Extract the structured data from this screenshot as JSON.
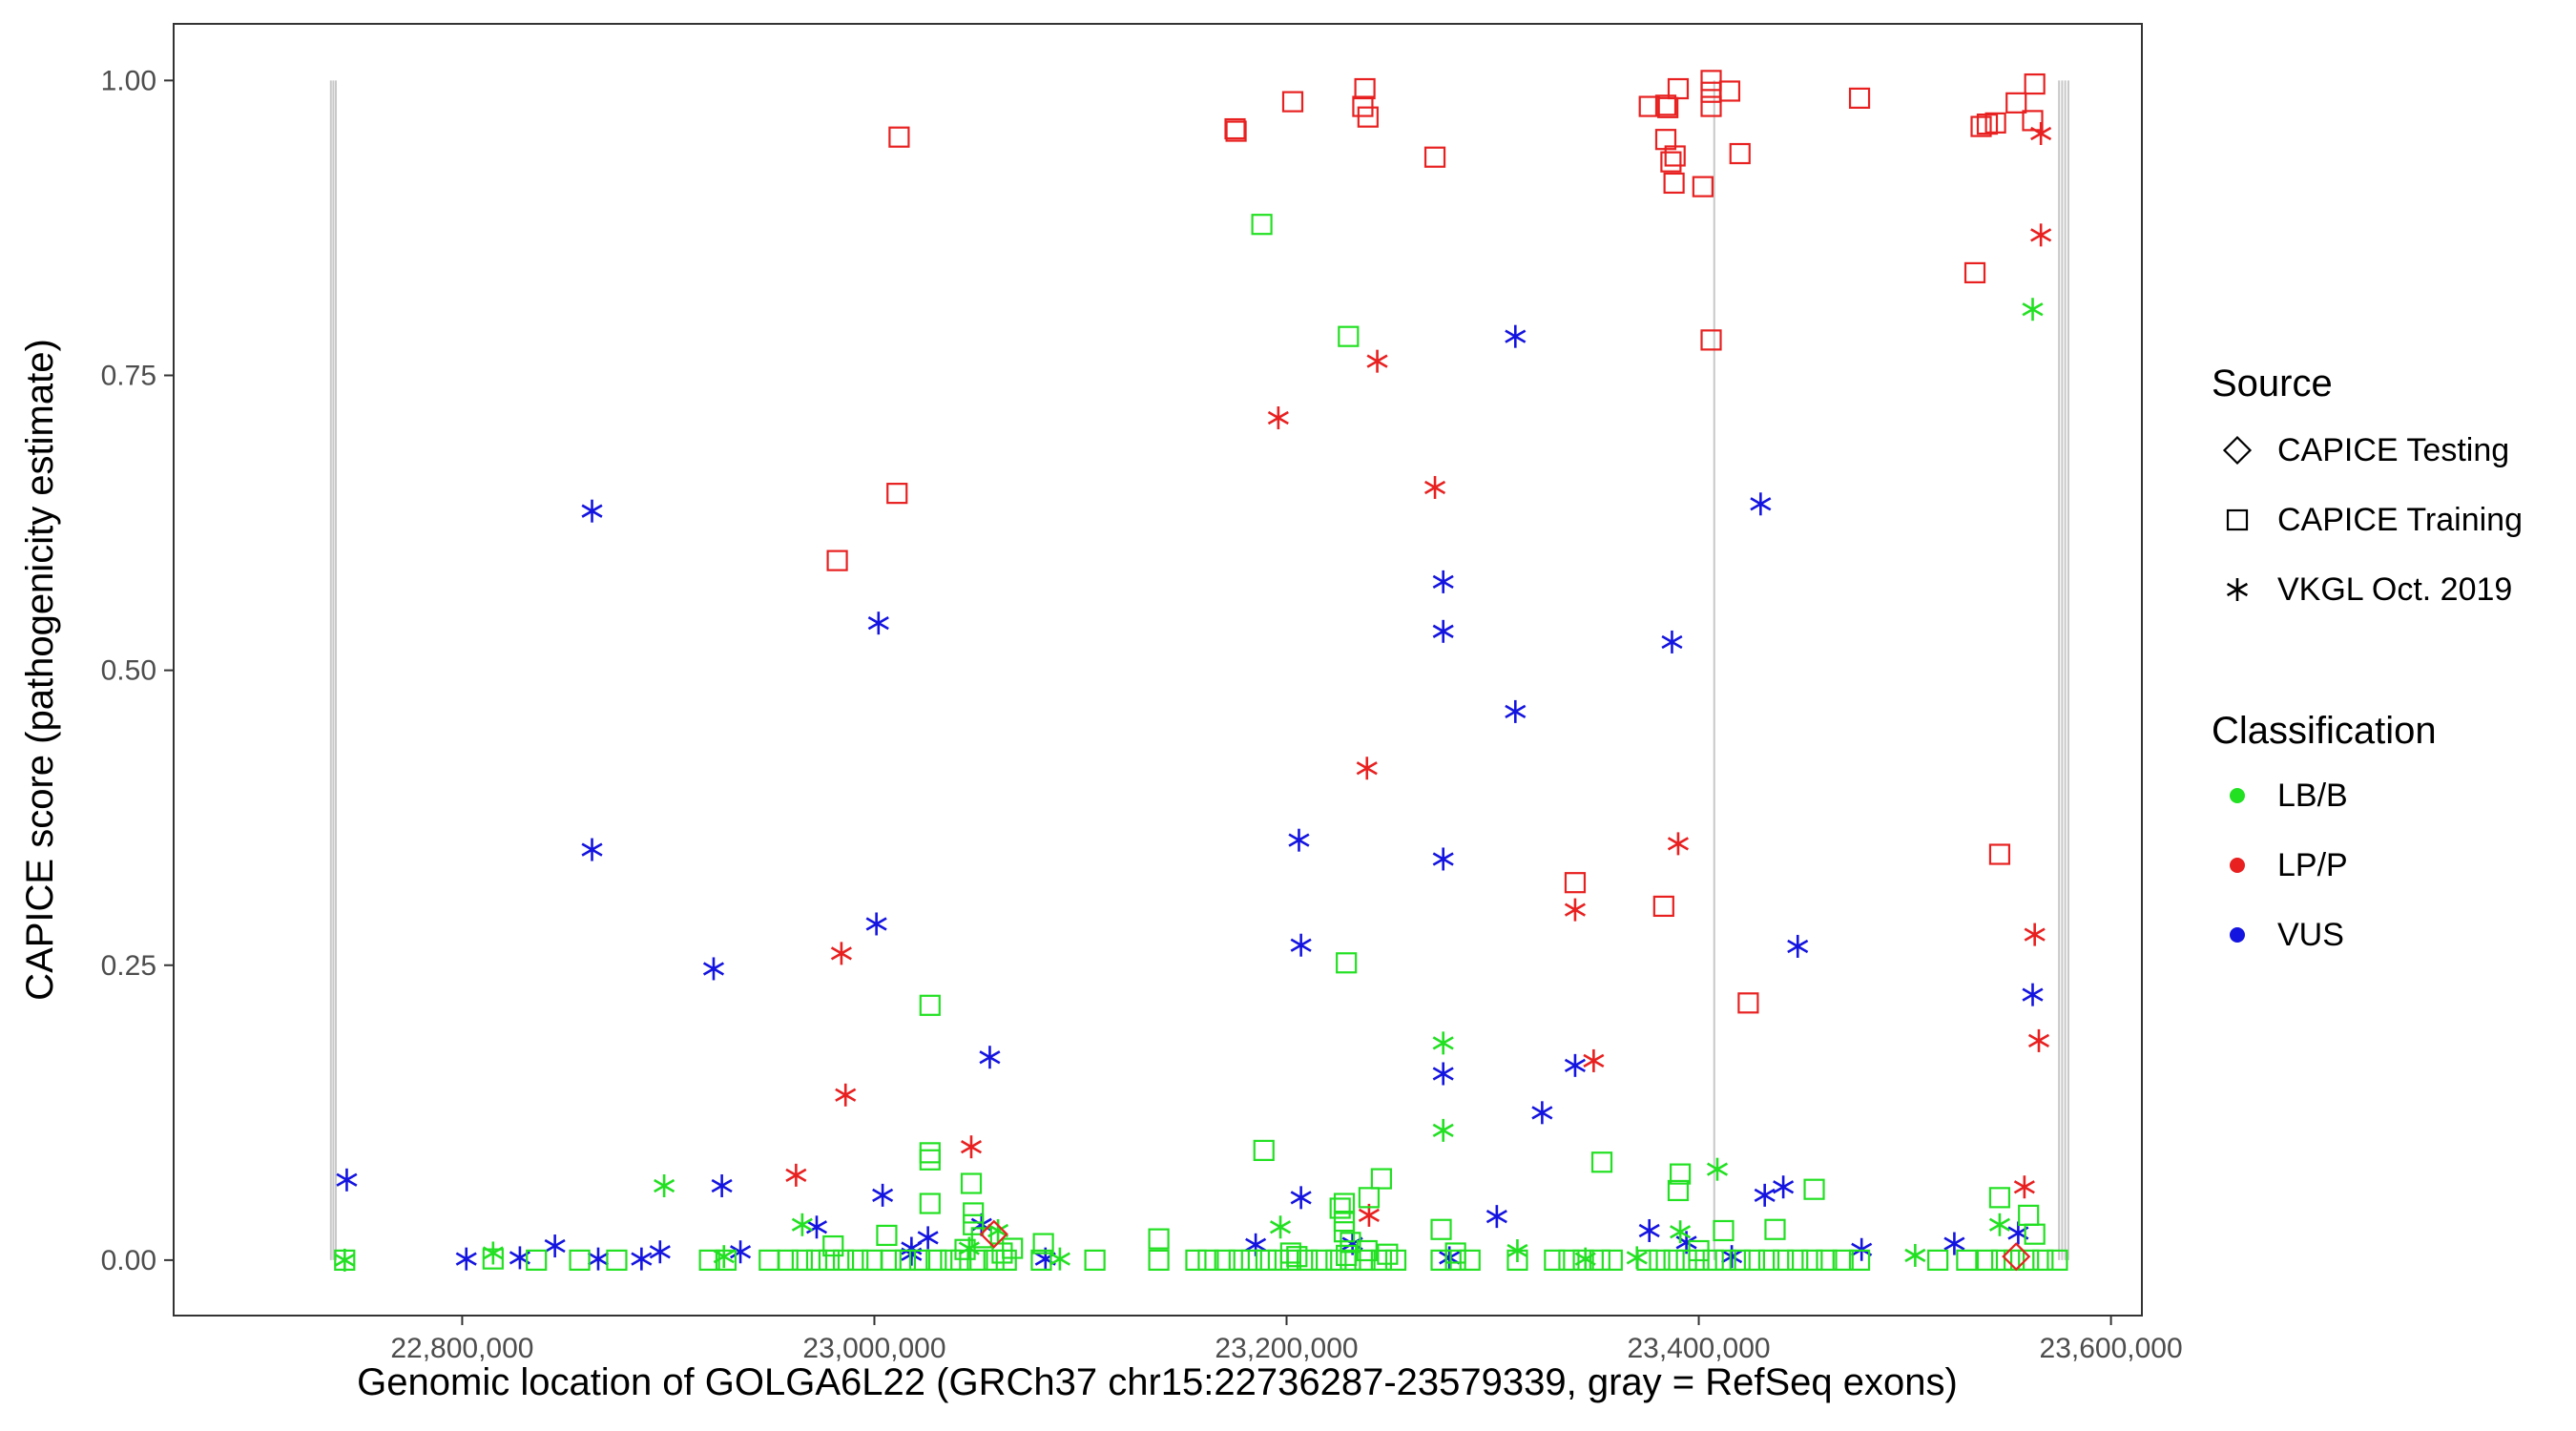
{
  "chart_data": {
    "type": "scatter",
    "xlabel": "Genomic location of GOLGA6L22 (GRCh37 chr15:22736287-23579339, gray = RefSeq exons)",
    "ylabel": "CAPICE score (pathogenicity estimate)",
    "xlim": [
      22660000,
      23615000
    ],
    "ylim": [
      -0.047,
      1.048
    ],
    "xticks": [
      22800000,
      23000000,
      23200000,
      23400000,
      23600000
    ],
    "xtick_labels": [
      "22,800,000",
      "23,000,000",
      "23,200,000",
      "23,400,000",
      "23,600,000"
    ],
    "yticks": [
      0,
      0.25,
      0.5,
      0.75,
      1
    ],
    "ytick_labels": [
      "0.00",
      "0.25",
      "0.50",
      "0.75",
      "1.00"
    ],
    "grid": false,
    "exon_positions": [
      22736287,
      22737500,
      22738700,
      23407500,
      23574800,
      23576300,
      23577800,
      23579339
    ],
    "colors": {
      "LB/B": "#22e022",
      "LP/P": "#e82020",
      "VUS": "#1414e0",
      "exon": "#c8c8c8"
    },
    "legend": {
      "placement": "right",
      "source_title": "Source",
      "source_items": [
        {
          "label": "CAPICE Testing",
          "shape": "diamond"
        },
        {
          "label": "CAPICE Training",
          "shape": "square"
        },
        {
          "label": "VKGL Oct. 2019",
          "shape": "asterisk"
        }
      ],
      "class_title": "Classification",
      "class_items": [
        {
          "label": "LB/B",
          "color": "#22e022"
        },
        {
          "label": "LP/P",
          "color": "#e82020"
        },
        {
          "label": "VUS",
          "color": "#1414e0"
        }
      ]
    },
    "series": [
      {
        "source": "CAPICE Training",
        "classification": "LP/P",
        "points": [
          [
            23012000,
            0.952
          ],
          [
            22982000,
            0.593
          ],
          [
            23011000,
            0.65
          ],
          [
            23175000,
            0.959
          ],
          [
            23175500,
            0.957
          ],
          [
            23203000,
            0.982
          ],
          [
            23238000,
            0.993
          ],
          [
            23237000,
            0.978
          ],
          [
            23239500,
            0.969
          ],
          [
            23272000,
            0.935
          ],
          [
            23376000,
            0.978
          ],
          [
            23384000,
            0.979
          ],
          [
            23385000,
            0.977
          ],
          [
            23390000,
            0.993
          ],
          [
            23384000,
            0.95
          ],
          [
            23388500,
            0.936
          ],
          [
            23386500,
            0.931
          ],
          [
            23388000,
            0.913
          ],
          [
            23406000,
            1.0
          ],
          [
            23406000,
            0.99
          ],
          [
            23406000,
            0.978
          ],
          [
            23415000,
            0.991
          ],
          [
            23420000,
            0.938
          ],
          [
            23402000,
            0.91
          ],
          [
            23406000,
            0.78
          ],
          [
            23383000,
            0.3
          ],
          [
            23340000,
            0.32
          ],
          [
            23424000,
            0.218
          ],
          [
            23478000,
            0.985
          ],
          [
            23540000,
            0.963
          ],
          [
            23537000,
            0.961
          ],
          [
            23544000,
            0.964
          ],
          [
            23554000,
            0.981
          ],
          [
            23563000,
            0.997
          ],
          [
            23562000,
            0.966
          ],
          [
            23534000,
            0.837
          ],
          [
            23546000,
            0.344
          ]
        ]
      },
      {
        "source": "VKGL Oct. 2019",
        "classification": "LP/P",
        "points": [
          [
            23196000,
            0.714
          ],
          [
            23244000,
            0.762
          ],
          [
            23272000,
            0.655
          ],
          [
            23239000,
            0.417
          ],
          [
            23390000,
            0.353
          ],
          [
            23340000,
            0.297
          ],
          [
            23349000,
            0.169
          ],
          [
            22984000,
            0.26
          ],
          [
            22986000,
            0.14
          ],
          [
            22962000,
            0.072
          ],
          [
            23047000,
            0.096
          ],
          [
            23240000,
            0.038
          ],
          [
            23566000,
            0.955
          ],
          [
            23566000,
            0.869
          ],
          [
            23563000,
            0.276
          ],
          [
            23565000,
            0.186
          ],
          [
            23558000,
            0.062
          ]
        ]
      },
      {
        "source": "VKGL Oct. 2019",
        "classification": "VUS",
        "points": [
          [
            22744000,
            0.068
          ],
          [
            22863000,
            0.635
          ],
          [
            22863000,
            0.348
          ],
          [
            22922000,
            0.247
          ],
          [
            23002000,
            0.54
          ],
          [
            23001000,
            0.285
          ],
          [
            23056000,
            0.172
          ],
          [
            23206000,
            0.356
          ],
          [
            23207000,
            0.267
          ],
          [
            23207000,
            0.053
          ],
          [
            23276000,
            0.575
          ],
          [
            23276000,
            0.533
          ],
          [
            23276000,
            0.34
          ],
          [
            23276000,
            0.158
          ],
          [
            23311000,
            0.783
          ],
          [
            23311000,
            0.465
          ],
          [
            23324000,
            0.125
          ],
          [
            23340000,
            0.165
          ],
          [
            23302000,
            0.037
          ],
          [
            23387000,
            0.524
          ],
          [
            23430000,
            0.641
          ],
          [
            23448000,
            0.266
          ],
          [
            23432000,
            0.055
          ],
          [
            23441000,
            0.062
          ],
          [
            23562000,
            0.225
          ],
          [
            23004000,
            0.055
          ],
          [
            23026000,
            0.019
          ],
          [
            22926000,
            0.063
          ],
          [
            23376000,
            0.025
          ],
          [
            23394000,
            0.015
          ],
          [
            22845000,
            0.012
          ],
          [
            22896000,
            0.007
          ],
          [
            22935000,
            0.007
          ],
          [
            22802000,
            0.001
          ],
          [
            22828000,
            0.002
          ],
          [
            22866000,
            0.001
          ],
          [
            22887000,
            0.001
          ],
          [
            22972000,
            0.028
          ],
          [
            23018000,
            0.01
          ],
          [
            23052000,
            0.03
          ],
          [
            23185000,
            0.013
          ],
          [
            23232000,
            0.014
          ],
          [
            23279000,
            0.002
          ],
          [
            23416000,
            0.003
          ],
          [
            23479000,
            0.009
          ],
          [
            23524000,
            0.014
          ],
          [
            23555000,
            0.023
          ],
          [
            23018000,
            0.005
          ],
          [
            23083000,
            0.001
          ]
        ]
      },
      {
        "source": "VKGL Oct. 2019",
        "classification": "LB/B",
        "points": [
          [
            23276000,
            0.184
          ],
          [
            23276000,
            0.11
          ],
          [
            23562000,
            0.806
          ],
          [
            22898000,
            0.063
          ],
          [
            23409000,
            0.077
          ],
          [
            22965000,
            0.03
          ],
          [
            23197000,
            0.028
          ],
          [
            23391000,
            0.024
          ],
          [
            23312000,
            0.008
          ],
          [
            23546000,
            0.03
          ],
          [
            23060000,
            0.025
          ],
          [
            22815000,
            0.006
          ],
          [
            22927000,
            0.003
          ],
          [
            23090000,
            0.001
          ],
          [
            23345000,
            0.001
          ],
          [
            23370000,
            0.002
          ],
          [
            23505000,
            0.004
          ],
          [
            23046000,
            0.01
          ],
          [
            22743000,
            0.0
          ]
        ]
      },
      {
        "source": "CAPICE Training",
        "classification": "LB/B",
        "points": [
          [
            23188000,
            0.878
          ],
          [
            23230000,
            0.783
          ],
          [
            23229000,
            0.252
          ],
          [
            23027000,
            0.216
          ],
          [
            23189000,
            0.093
          ],
          [
            23027000,
            0.091
          ],
          [
            23027000,
            0.085
          ],
          [
            23047000,
            0.065
          ],
          [
            23027000,
            0.048
          ],
          [
            23353000,
            0.083
          ],
          [
            23391000,
            0.073
          ],
          [
            23390000,
            0.059
          ],
          [
            23456000,
            0.06
          ],
          [
            23246000,
            0.069
          ],
          [
            23228000,
            0.048
          ],
          [
            23240000,
            0.053
          ],
          [
            23226000,
            0.044
          ],
          [
            23228000,
            0.033
          ],
          [
            23228000,
            0.024
          ],
          [
            23048000,
            0.04
          ],
          [
            23275000,
            0.026
          ],
          [
            23437000,
            0.026
          ],
          [
            23546000,
            0.053
          ],
          [
            23560000,
            0.038
          ],
          [
            23563000,
            0.022
          ],
          [
            23138000,
            0.018
          ],
          [
            23006000,
            0.021
          ],
          [
            22980000,
            0.012
          ],
          [
            23082000,
            0.014
          ],
          [
            23048000,
            0.03
          ],
          [
            23231000,
            0.015
          ],
          [
            23052000,
            0.019
          ],
          [
            23044000,
            0.009
          ],
          [
            23062000,
            0.006
          ],
          [
            23067000,
            0.01
          ],
          [
            23229000,
            0.004
          ],
          [
            23239000,
            0.008
          ],
          [
            23249000,
            0.005
          ],
          [
            23412000,
            0.025
          ],
          [
            23400000,
            0.008
          ],
          [
            23205000,
            0.003
          ],
          [
            23202000,
            0.006
          ],
          [
            23282000,
            0.006
          ],
          [
            22743000,
            0.0
          ],
          [
            22815000,
            0.001
          ],
          [
            22836000,
            0.0
          ],
          [
            22857000,
            0.0
          ],
          [
            22875000,
            0.0
          ],
          [
            22920000,
            0.0
          ],
          [
            22928000,
            0.0
          ],
          [
            22949000,
            0.0
          ],
          [
            22958000,
            0.0
          ],
          [
            22965000,
            0.0
          ],
          [
            22972000,
            0.0
          ],
          [
            22978000,
            0.0
          ],
          [
            22985000,
            0.0
          ],
          [
            22992000,
            0.0
          ],
          [
            22999000,
            0.0
          ],
          [
            23008000,
            0.0
          ],
          [
            23015000,
            0.0
          ],
          [
            23022000,
            0.0
          ],
          [
            23030000,
            0.0
          ],
          [
            23037000,
            0.0
          ],
          [
            23042000,
            0.0
          ],
          [
            23050000,
            0.0
          ],
          [
            23058000,
            0.0
          ],
          [
            23064000,
            0.0
          ],
          [
            23081000,
            0.0
          ],
          [
            23107000,
            0.0
          ],
          [
            23138000,
            0.0
          ],
          [
            23156000,
            0.0
          ],
          [
            23162000,
            0.0
          ],
          [
            23170000,
            0.0
          ],
          [
            23177000,
            0.0
          ],
          [
            23183000,
            0.0
          ],
          [
            23190000,
            0.0
          ],
          [
            23196000,
            0.0
          ],
          [
            23202000,
            0.0
          ],
          [
            23210000,
            0.0
          ],
          [
            23217000,
            0.0
          ],
          [
            23224000,
            0.0
          ],
          [
            23231000,
            0.0
          ],
          [
            23238000,
            0.0
          ],
          [
            23246000,
            0.0
          ],
          [
            23253000,
            0.0
          ],
          [
            23275000,
            0.0
          ],
          [
            23282000,
            0.0
          ],
          [
            23289000,
            0.0
          ],
          [
            23312000,
            0.0
          ],
          [
            23330000,
            0.0
          ],
          [
            23337000,
            0.0
          ],
          [
            23344000,
            0.0
          ],
          [
            23352000,
            0.0
          ],
          [
            23358000,
            0.0
          ],
          [
            23375000,
            0.0
          ],
          [
            23381000,
            0.0
          ],
          [
            23388000,
            0.0
          ],
          [
            23394000,
            0.0
          ],
          [
            23400000,
            0.0
          ],
          [
            23407000,
            0.0
          ],
          [
            23413000,
            0.0
          ],
          [
            23420000,
            0.0
          ],
          [
            23427000,
            0.0
          ],
          [
            23434000,
            0.0
          ],
          [
            23441000,
            0.0
          ],
          [
            23448000,
            0.0
          ],
          [
            23455000,
            0.0
          ],
          [
            23462000,
            0.0
          ],
          [
            23470000,
            0.0
          ],
          [
            23478000,
            0.0
          ],
          [
            23516000,
            0.0
          ],
          [
            23530000,
            0.0
          ],
          [
            23540000,
            0.0
          ],
          [
            23547000,
            0.0
          ],
          [
            23553000,
            0.0
          ],
          [
            23560000,
            0.0
          ],
          [
            23567000,
            0.0
          ],
          [
            23574000,
            0.0
          ]
        ]
      },
      {
        "source": "CAPICE Testing",
        "classification": "LP/P",
        "points": [
          [
            23058000,
            0.022
          ],
          [
            23554000,
            0.003
          ]
        ]
      }
    ]
  }
}
